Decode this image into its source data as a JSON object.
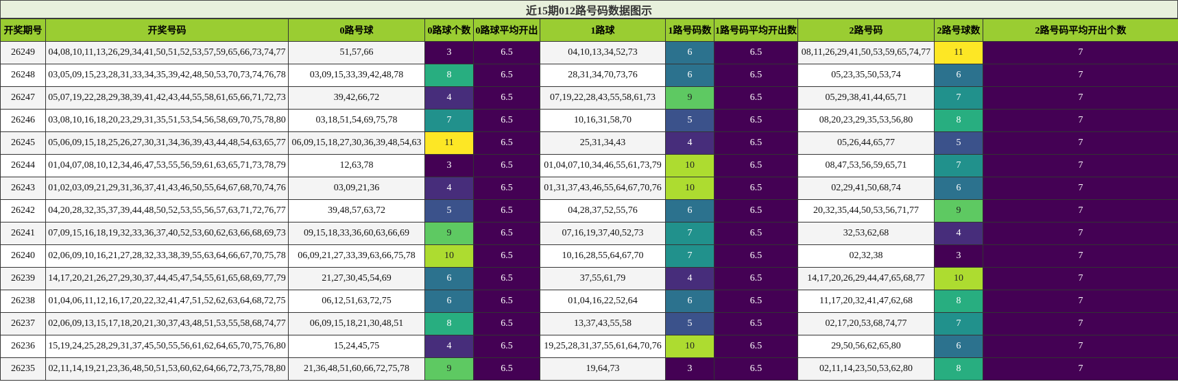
{
  "title": "近15期012路号码数据图示",
  "headers": [
    "开奖期号",
    "开奖号码",
    "0路号球",
    "0路球个数",
    "0路球平均开出",
    "1路球",
    "1路号码数",
    "1路号码平均开出数",
    "2路号码",
    "2路号球数",
    "2路号码平均开出个数"
  ],
  "colors": {
    "3": "#440154",
    "4": "#472d7b",
    "5": "#3b528b",
    "6": "#2c728e",
    "7": "#21918c",
    "8": "#28ae80",
    "9": "#5ec962",
    "10": "#addc30",
    "11": "#fde725",
    "avg": "#440154"
  },
  "rows": [
    {
      "period": "26249",
      "numbers": "04,08,10,11,13,26,29,34,41,50,51,52,53,57,59,65,66,73,74,77",
      "r0": "51,57,66",
      "c0": 3,
      "a0": "6.5",
      "r1": "04,10,13,34,52,73",
      "c1": 6,
      "a1": "6.5",
      "r2": "08,11,26,29,41,50,53,59,65,74,77",
      "c2": 11,
      "a2": "7"
    },
    {
      "period": "26248",
      "numbers": "03,05,09,15,23,28,31,33,34,35,39,42,48,50,53,70,73,74,76,78",
      "r0": "03,09,15,33,39,42,48,78",
      "c0": 8,
      "a0": "6.5",
      "r1": "28,31,34,70,73,76",
      "c1": 6,
      "a1": "6.5",
      "r2": "05,23,35,50,53,74",
      "c2": 6,
      "a2": "7"
    },
    {
      "period": "26247",
      "numbers": "05,07,19,22,28,29,38,39,41,42,43,44,55,58,61,65,66,71,72,73",
      "r0": "39,42,66,72",
      "c0": 4,
      "a0": "6.5",
      "r1": "07,19,22,28,43,55,58,61,73",
      "c1": 9,
      "a1": "6.5",
      "r2": "05,29,38,41,44,65,71",
      "c2": 7,
      "a2": "7"
    },
    {
      "period": "26246",
      "numbers": "03,08,10,16,18,20,23,29,31,35,51,53,54,56,58,69,70,75,78,80",
      "r0": "03,18,51,54,69,75,78",
      "c0": 7,
      "a0": "6.5",
      "r1": "10,16,31,58,70",
      "c1": 5,
      "a1": "6.5",
      "r2": "08,20,23,29,35,53,56,80",
      "c2": 8,
      "a2": "7"
    },
    {
      "period": "26245",
      "numbers": "05,06,09,15,18,25,26,27,30,31,34,36,39,43,44,48,54,63,65,77",
      "r0": "06,09,15,18,27,30,36,39,48,54,63",
      "c0": 11,
      "a0": "6.5",
      "r1": "25,31,34,43",
      "c1": 4,
      "a1": "6.5",
      "r2": "05,26,44,65,77",
      "c2": 5,
      "a2": "7"
    },
    {
      "period": "26244",
      "numbers": "01,04,07,08,10,12,34,46,47,53,55,56,59,61,63,65,71,73,78,79",
      "r0": "12,63,78",
      "c0": 3,
      "a0": "6.5",
      "r1": "01,04,07,10,34,46,55,61,73,79",
      "c1": 10,
      "a1": "6.5",
      "r2": "08,47,53,56,59,65,71",
      "c2": 7,
      "a2": "7"
    },
    {
      "period": "26243",
      "numbers": "01,02,03,09,21,29,31,36,37,41,43,46,50,55,64,67,68,70,74,76",
      "r0": "03,09,21,36",
      "c0": 4,
      "a0": "6.5",
      "r1": "01,31,37,43,46,55,64,67,70,76",
      "c1": 10,
      "a1": "6.5",
      "r2": "02,29,41,50,68,74",
      "c2": 6,
      "a2": "7"
    },
    {
      "period": "26242",
      "numbers": "04,20,28,32,35,37,39,44,48,50,52,53,55,56,57,63,71,72,76,77",
      "r0": "39,48,57,63,72",
      "c0": 5,
      "a0": "6.5",
      "r1": "04,28,37,52,55,76",
      "c1": 6,
      "a1": "6.5",
      "r2": "20,32,35,44,50,53,56,71,77",
      "c2": 9,
      "a2": "7"
    },
    {
      "period": "26241",
      "numbers": "07,09,15,16,18,19,32,33,36,37,40,52,53,60,62,63,66,68,69,73",
      "r0": "09,15,18,33,36,60,63,66,69",
      "c0": 9,
      "a0": "6.5",
      "r1": "07,16,19,37,40,52,73",
      "c1": 7,
      "a1": "6.5",
      "r2": "32,53,62,68",
      "c2": 4,
      "a2": "7"
    },
    {
      "period": "26240",
      "numbers": "02,06,09,10,16,21,27,28,32,33,38,39,55,63,64,66,67,70,75,78",
      "r0": "06,09,21,27,33,39,63,66,75,78",
      "c0": 10,
      "a0": "6.5",
      "r1": "10,16,28,55,64,67,70",
      "c1": 7,
      "a1": "6.5",
      "r2": "02,32,38",
      "c2": 3,
      "a2": "7"
    },
    {
      "period": "26239",
      "numbers": "14,17,20,21,26,27,29,30,37,44,45,47,54,55,61,65,68,69,77,79",
      "r0": "21,27,30,45,54,69",
      "c0": 6,
      "a0": "6.5",
      "r1": "37,55,61,79",
      "c1": 4,
      "a1": "6.5",
      "r2": "14,17,20,26,29,44,47,65,68,77",
      "c2": 10,
      "a2": "7"
    },
    {
      "period": "26238",
      "numbers": "01,04,06,11,12,16,17,20,22,32,41,47,51,52,62,63,64,68,72,75",
      "r0": "06,12,51,63,72,75",
      "c0": 6,
      "a0": "6.5",
      "r1": "01,04,16,22,52,64",
      "c1": 6,
      "a1": "6.5",
      "r2": "11,17,20,32,41,47,62,68",
      "c2": 8,
      "a2": "7"
    },
    {
      "period": "26237",
      "numbers": "02,06,09,13,15,17,18,20,21,30,37,43,48,51,53,55,58,68,74,77",
      "r0": "06,09,15,18,21,30,48,51",
      "c0": 8,
      "a0": "6.5",
      "r1": "13,37,43,55,58",
      "c1": 5,
      "a1": "6.5",
      "r2": "02,17,20,53,68,74,77",
      "c2": 7,
      "a2": "7"
    },
    {
      "period": "26236",
      "numbers": "15,19,24,25,28,29,31,37,45,50,55,56,61,62,64,65,70,75,76,80",
      "r0": "15,24,45,75",
      "c0": 4,
      "a0": "6.5",
      "r1": "19,25,28,31,37,55,61,64,70,76",
      "c1": 10,
      "a1": "6.5",
      "r2": "29,50,56,62,65,80",
      "c2": 6,
      "a2": "7"
    },
    {
      "period": "26235",
      "numbers": "02,11,14,19,21,23,36,48,50,51,53,60,62,64,66,72,73,75,78,80",
      "r0": "21,36,48,51,60,66,72,75,78",
      "c0": 9,
      "a0": "6.5",
      "r1": "19,64,73",
      "c1": 3,
      "a1": "6.5",
      "r2": "02,11,14,23,50,53,62,80",
      "c2": 8,
      "a2": "7"
    }
  ]
}
